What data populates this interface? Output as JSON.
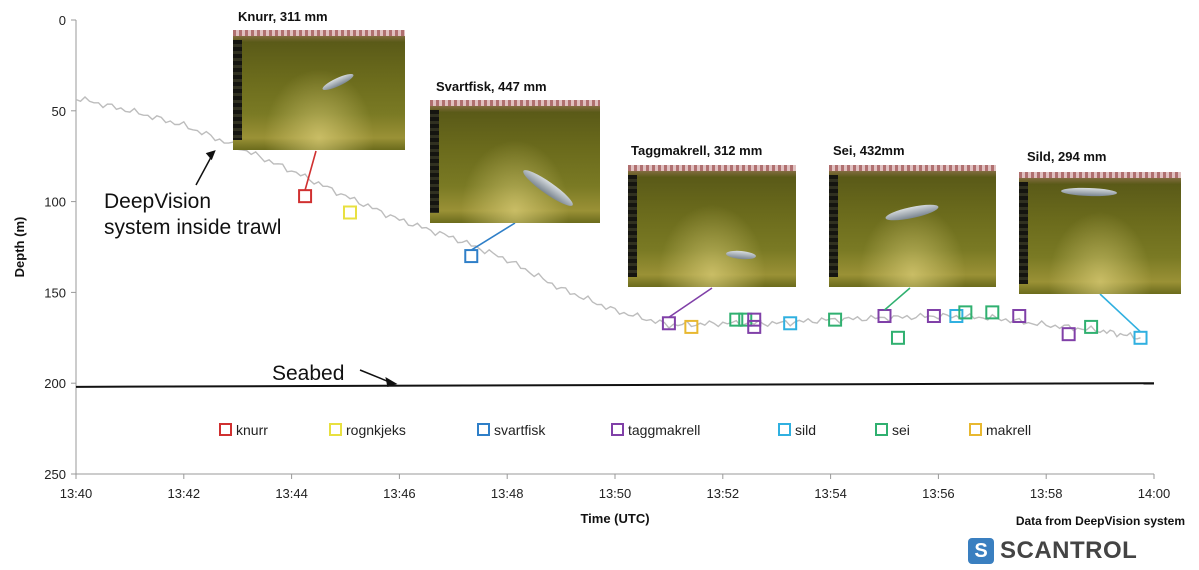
{
  "chart_data": {
    "type": "line",
    "xlabel": "Time (UTC)",
    "ylabel": "Depth (m)",
    "x_ticks": [
      "13:40",
      "13:42",
      "13:44",
      "13:46",
      "13:48",
      "13:50",
      "13:52",
      "13:54",
      "13:56",
      "13:58",
      "14:00"
    ],
    "y_ticks": [
      0,
      50,
      100,
      150,
      200,
      250
    ],
    "xlim": [
      "13:40",
      "14:00"
    ],
    "ylim": [
      0,
      250
    ],
    "y_inverted": true,
    "trawl_depth": {
      "x": [
        "13:40",
        "13:41",
        "13:42",
        "13:43",
        "13:44",
        "13:45",
        "13:46",
        "13:47",
        "13:48",
        "13:49",
        "13:50",
        "13:51",
        "13:52",
        "13:53",
        "13:54",
        "13:55",
        "13:56",
        "13:57",
        "13:58",
        "13:59",
        "13:59:45"
      ],
      "y": [
        43,
        50,
        58,
        70,
        83,
        97,
        110,
        120,
        132,
        148,
        160,
        168,
        167,
        167,
        165,
        164,
        163,
        164,
        168,
        171,
        175
      ]
    },
    "seabed": {
      "x": [
        "13:40",
        "14:00"
      ],
      "y": [
        202,
        200
      ]
    },
    "detections": [
      {
        "species": "knurr",
        "time": "13:44:15",
        "depth": 97
      },
      {
        "species": "rognkjeks",
        "time": "13:45:05",
        "depth": 106
      },
      {
        "species": "svartfisk",
        "time": "13:47:20",
        "depth": 130
      },
      {
        "species": "taggmakrell",
        "time": "13:51:00",
        "depth": 167
      },
      {
        "species": "makrell",
        "time": "13:51:25",
        "depth": 169
      },
      {
        "species": "sei",
        "time": "13:52:15",
        "depth": 165
      },
      {
        "species": "sei",
        "time": "13:52:25",
        "depth": 165
      },
      {
        "species": "taggmakrell",
        "time": "13:52:35",
        "depth": 169
      },
      {
        "species": "taggmakrell",
        "time": "13:52:35",
        "depth": 165
      },
      {
        "species": "sild",
        "time": "13:53:15",
        "depth": 167
      },
      {
        "species": "sei",
        "time": "13:54:05",
        "depth": 165
      },
      {
        "species": "sei",
        "time": "13:55:00",
        "depth": 163
      },
      {
        "species": "taggmakrell",
        "time": "13:55:00",
        "depth": 163
      },
      {
        "species": "sei",
        "time": "13:55:15",
        "depth": 175
      },
      {
        "species": "taggmakrell",
        "time": "13:55:55",
        "depth": 163
      },
      {
        "species": "sild",
        "time": "13:56:20",
        "depth": 163
      },
      {
        "species": "sei",
        "time": "13:56:30",
        "depth": 161
      },
      {
        "species": "sei",
        "time": "13:57:00",
        "depth": 161
      },
      {
        "species": "taggmakrell",
        "time": "13:57:30",
        "depth": 163
      },
      {
        "species": "taggmakrell",
        "time": "13:58:25",
        "depth": 173
      },
      {
        "species": "sei",
        "time": "13:58:50",
        "depth": 169
      },
      {
        "species": "sild",
        "time": "13:59:45",
        "depth": 175
      }
    ],
    "legend": {
      "placement": "inside-bottom",
      "entries": [
        {
          "label": "knurr",
          "color": "#d03030"
        },
        {
          "label": "rognkjeks",
          "color": "#e8e040"
        },
        {
          "label": "svartfisk",
          "color": "#2f7fc8"
        },
        {
          "label": "taggmakrell",
          "color": "#8040a8"
        },
        {
          "label": "sild",
          "color": "#30b0e0"
        },
        {
          "label": "sei",
          "color": "#30b070"
        },
        {
          "label": "makrell",
          "color": "#e8b830"
        }
      ]
    },
    "annotations": [
      {
        "text_lines": [
          "DeepVision",
          "system inside trawl"
        ],
        "time": "13:42:40",
        "depth": 70
      },
      {
        "text": "Seabed",
        "time": "13:46:00",
        "depth": 201
      }
    ],
    "photos": [
      {
        "caption": "Knurr, 311 mm",
        "species": "knurr"
      },
      {
        "caption": "Svartfisk, 447 mm",
        "species": "svartfisk"
      },
      {
        "caption": "Taggmakrell, 312 mm",
        "species": "taggmakrell"
      },
      {
        "caption": "Sei, 432mm",
        "species": "sei"
      },
      {
        "caption": "Sild, 294 mm",
        "species": "sild"
      }
    ]
  },
  "footer": {
    "credit": "Data from  DeepVision system",
    "logo_text": "SCANTROL"
  },
  "colors": {
    "trawl_line": "#bdbdbd",
    "seabed": "#111111",
    "axis": "#999999"
  }
}
